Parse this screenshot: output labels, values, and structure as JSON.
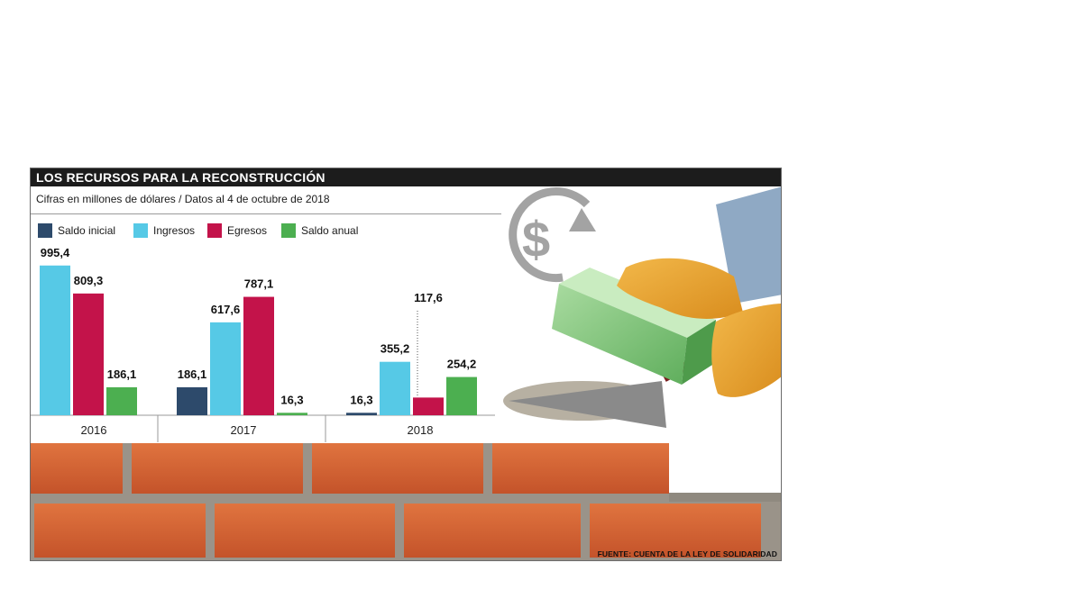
{
  "header": {
    "title": "LOS RECURSOS PARA LA RECONSTRUCCIÓN",
    "subtitle": "Cifras en millones de dólares / Datos al 4 de octubre de 2018"
  },
  "source": "FUENTE: CUENTA DE LA LEY DE SOLIDARIDAD",
  "icons": [
    "dollar-cycle-icon",
    "brick-of-money-illustration",
    "gloved-hands-illustration",
    "trowel-illustration",
    "brick-wall-illustration"
  ],
  "chart_data": {
    "type": "bar",
    "title": "LOS RECURSOS PARA LA RECONSTRUCCIÓN",
    "subtitle": "Cifras en millones de dólares / Datos al 4 de octubre de 2018",
    "categories": [
      "2016",
      "2017",
      "2018"
    ],
    "series": [
      {
        "name": "Saldo inicial",
        "color": "#2d4a6b",
        "values": [
          null,
          186.1,
          16.3
        ],
        "labels": [
          "",
          "186,1",
          "16,3"
        ]
      },
      {
        "name": "Ingresos",
        "color": "#56c9e6",
        "values": [
          995.4,
          617.6,
          355.2
        ],
        "labels": [
          "995,4",
          "617,6",
          "355,2"
        ]
      },
      {
        "name": "Egresos",
        "color": "#c3134a",
        "values": [
          809.3,
          787.1,
          117.6
        ],
        "labels": [
          "809,3",
          "787,1",
          "117,6"
        ]
      },
      {
        "name": "Saldo anual",
        "color": "#4caf50",
        "values": [
          186.1,
          16.3,
          254.2
        ],
        "labels": [
          "186,1",
          "16,3",
          "254,2"
        ]
      }
    ],
    "ylim": [
      0,
      1000
    ],
    "grid": false,
    "legend": "top-left"
  }
}
